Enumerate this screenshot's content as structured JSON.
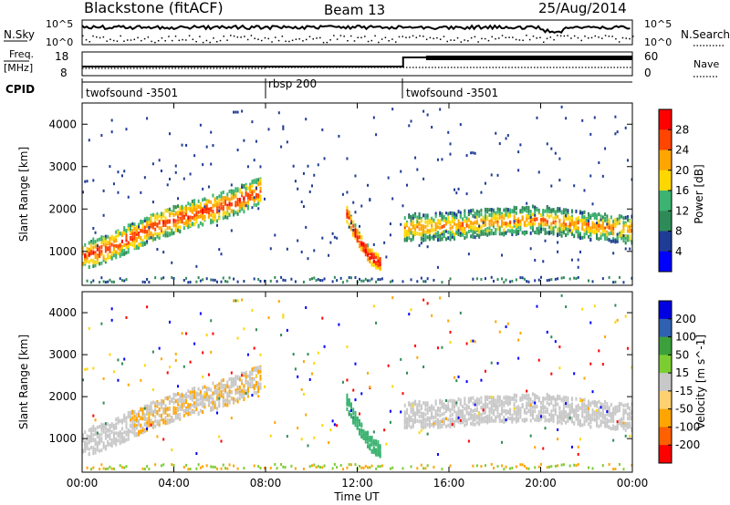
{
  "header": {
    "station": "Blackstone (fitACF)",
    "beam": "Beam 13",
    "date": "25/Aug/2014"
  },
  "top_panels": {
    "nsky_label": "N.Sky",
    "nsky_ticks": [
      "10^5",
      "10^0"
    ],
    "nsearch_label": "N.Search",
    "freq_label_1": "Freq.",
    "freq_label_2": "[MHz]",
    "freq_ticks": [
      "18",
      "8"
    ],
    "nave_label": "Nave",
    "nave_ticks": [
      "60",
      "0"
    ],
    "cpid_label": "CPID",
    "cpid_segments": [
      {
        "label": "twofsound -3501",
        "start": 0,
        "end": 8.0
      },
      {
        "label": "rbsp 200",
        "start": 8.0,
        "end": 14.0
      },
      {
        "label": "twofsound -3501",
        "start": 14.0,
        "end": 24.0
      }
    ]
  },
  "chart_data": [
    {
      "type": "heatmap",
      "name": "Power",
      "colorbar_label": "Power [dB]",
      "colorbar_ticks": [
        "28",
        "24",
        "20",
        "16",
        "12",
        "8",
        "4"
      ],
      "colorbar_range": [
        0,
        32
      ],
      "colors": [
        "#0000ff",
        "#1e3c96",
        "#2e8b57",
        "#3cb371",
        "#ffd700",
        "#ffa500",
        "#ff4500",
        "#ff0000"
      ],
      "ylabel": "Slant Range [km]",
      "y_ticks": [
        "4000",
        "3000",
        "2000",
        "1000"
      ],
      "ylim": [
        200,
        4500
      ],
      "xlim": [
        0,
        24
      ],
      "echo_bands": [
        {
          "x": [
            0,
            1,
            2,
            3,
            4,
            5,
            6,
            7,
            7.8
          ],
          "y": [
            900,
            1050,
            1300,
            1550,
            1750,
            1900,
            2050,
            2250,
            2450
          ],
          "power": 22
        },
        {
          "x": [
            11.5,
            12.0,
            12.5,
            13.0
          ],
          "y": [
            1900,
            1300,
            900,
            700
          ],
          "power": 26
        },
        {
          "x": [
            14,
            16,
            18,
            20,
            22,
            24
          ],
          "y": [
            1550,
            1600,
            1700,
            1750,
            1600,
            1500
          ],
          "power": 18
        }
      ]
    },
    {
      "type": "heatmap",
      "name": "Velocity",
      "colorbar_label": "Velocity [m s^-1]",
      "colorbar_ticks": [
        "200",
        "100",
        "50",
        "15",
        "-15",
        "-50",
        "-100",
        "-200"
      ],
      "colorbar_range": [
        -250,
        250
      ],
      "colors": [
        "#ff0000",
        "#ff6000",
        "#ffa500",
        "#ffd070",
        "#c8c8c8",
        "#7ccd32",
        "#3ca03c",
        "#3060b0",
        "#0000e0"
      ],
      "ylabel": "Slant Range [km]",
      "y_ticks": [
        "4000",
        "3000",
        "2000",
        "1000"
      ],
      "ylim": [
        200,
        4500
      ],
      "xlim": [
        0,
        24
      ]
    }
  ],
  "x_axis": {
    "ticks": [
      "00:00",
      "04:00",
      "08:00",
      "12:00",
      "16:00",
      "20:00",
      "00:00"
    ],
    "label": "Time UT"
  }
}
